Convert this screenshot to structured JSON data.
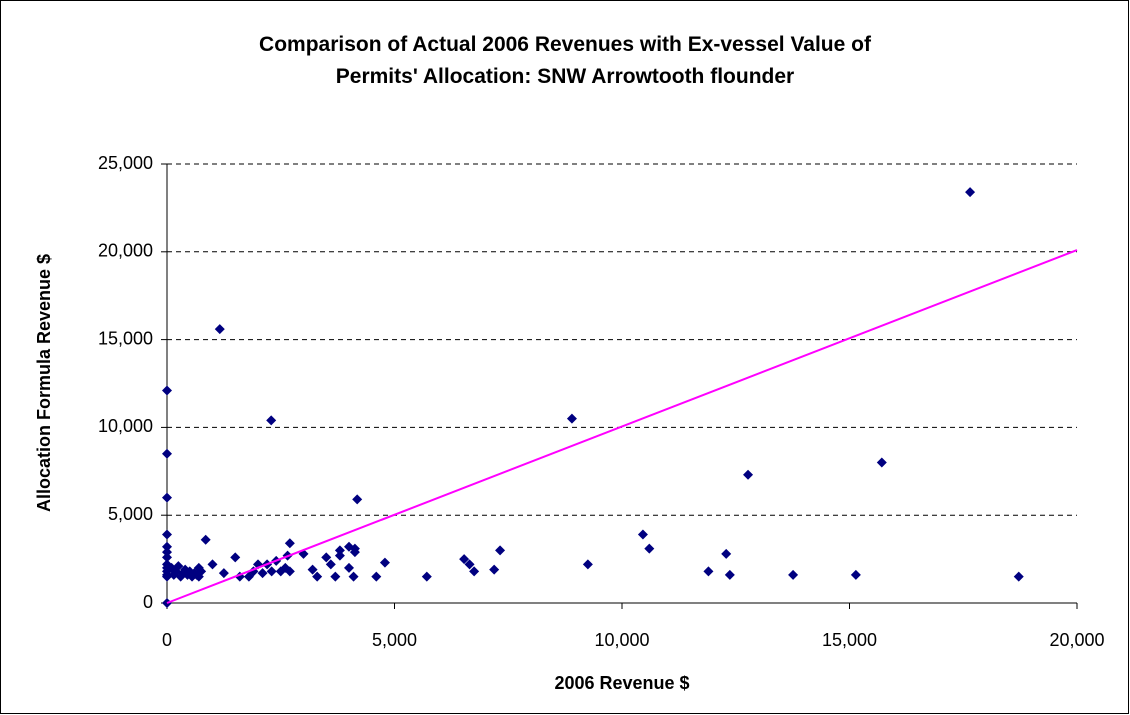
{
  "chart_data": {
    "type": "scatter",
    "title": "Comparison of Actual 2006 Revenues with Ex-vessel Value of Permits' Allocation: SNW Arrowtooth flounder",
    "xlabel": "2006 Revenue $",
    "ylabel": "Allocation Formula Revenue $",
    "x": [
      0,
      0,
      0,
      0,
      0,
      0,
      0,
      0,
      0,
      0,
      0,
      0,
      0,
      100,
      150,
      200,
      250,
      300,
      350,
      400,
      450,
      500,
      550,
      600,
      650,
      700,
      750,
      700,
      850,
      1000,
      1160,
      1250,
      1500,
      1600,
      1800,
      1900,
      2000,
      2100,
      2200,
      2300,
      2290,
      2400,
      2500,
      2600,
      2650,
      2700,
      2700,
      3000,
      3200,
      3300,
      3500,
      3600,
      3700,
      3800,
      3800,
      4000,
      4000,
      4100,
      4130,
      4180,
      4130,
      4600,
      4790,
      5710,
      6530,
      6650,
      6750,
      7190,
      7320,
      8900,
      9250,
      10460,
      10600,
      11900,
      12290,
      12370,
      12770,
      13760,
      15140,
      15710,
      17650,
      18720
    ],
    "series": [
      {
        "color": "#000080",
        "values": [
          12100,
          8500,
          6000,
          3900,
          3200,
          2900,
          2600,
          2200,
          2000,
          1800,
          1600,
          1500,
          0,
          2000,
          1600,
          1800,
          2100,
          1500,
          1700,
          1900,
          1600,
          1800,
          1500,
          1700,
          1600,
          2000,
          1800,
          1500,
          3600,
          2200,
          15600,
          1700,
          2600,
          1500,
          1500,
          1800,
          2200,
          1700,
          2200,
          1800,
          10400,
          2400,
          1800,
          2000,
          2700,
          3400,
          1800,
          2800,
          1900,
          1500,
          2600,
          2200,
          1500,
          2700,
          3000,
          3200,
          2000,
          1500,
          3100,
          5900,
          2900,
          1500,
          2300,
          1500,
          2500,
          2200,
          1800,
          1900,
          3000,
          10500,
          2200,
          3900,
          3100,
          1800,
          2800,
          1600,
          7300,
          1600,
          1600,
          8000,
          23400,
          1500
        ]
      }
    ],
    "line": {
      "color": "#ff00ff",
      "x": [
        0,
        20000
      ],
      "y": [
        0,
        20100
      ]
    },
    "xlim": [
      0,
      20000
    ],
    "xticks": [
      0,
      {
        "value": 5000,
        "label": "5,000"
      },
      {
        "value": 10000,
        "label": "10,000"
      },
      {
        "value": 15000,
        "label": "15,000"
      },
      {
        "value": 20000,
        "label": "20,000"
      }
    ],
    "ylim": [
      0,
      25000
    ],
    "yticks": [
      0,
      {
        "value": 5000,
        "label": "5,000"
      },
      {
        "value": 10000,
        "label": "10,000"
      },
      {
        "value": 15000,
        "label": "15,000"
      },
      {
        "value": 20000,
        "label": "20,000"
      },
      {
        "value": 25000,
        "label": "25,000"
      }
    ],
    "grid": true
  }
}
